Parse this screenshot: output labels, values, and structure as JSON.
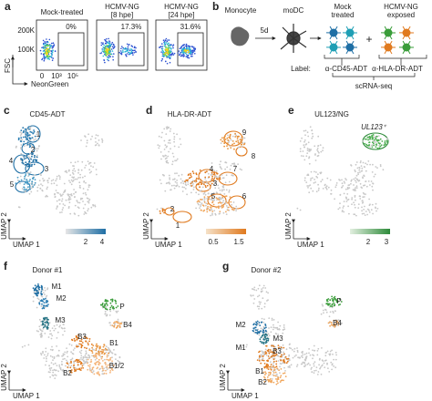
{
  "a": {
    "label": "a",
    "plots": [
      {
        "title": [
          "Mock-treated"
        ],
        "gate": "0%"
      },
      {
        "title": [
          "HCMV-NG",
          "[8 hpe]"
        ],
        "gate": "17.3%"
      },
      {
        "title": [
          "HCMV-NG",
          "[24 hpe]"
        ],
        "gate": "31.6%"
      }
    ],
    "y_label": "FSC",
    "y_ticks": [
      "200K",
      "100K"
    ],
    "x_ticks": [
      "0",
      "10³",
      "10⁵"
    ],
    "x_label": "NeonGreen"
  },
  "b": {
    "label": "b",
    "monocyte": "Monocyte",
    "duration": "5d",
    "modc": "moDC",
    "mock": [
      "Mock",
      "treated"
    ],
    "plus": "+",
    "exposed": [
      "HCMV-NG",
      "exposed"
    ],
    "label_prefix": "Label:",
    "cd45": "α-CD45-ADT",
    "hladr": "α-HLA-DR-ADT",
    "readout": "scRNA-seq"
  },
  "c": {
    "label": "c",
    "title": "CD45-ADT",
    "clusters": [
      "1",
      "2",
      "3",
      "4",
      "5"
    ],
    "colorbar_ticks": [
      "2",
      "4"
    ],
    "umap_y": "UMAP 2",
    "umap_x": "UMAP 1"
  },
  "d": {
    "label": "d",
    "title": "HLA-DR-ADT",
    "clusters": [
      "1",
      "2",
      "3",
      "4",
      "5",
      "6",
      "7",
      "8",
      "9"
    ],
    "colorbar_ticks": [
      "0.5",
      "1.5"
    ],
    "umap_y": "UMAP 2",
    "umap_x": "UMAP 1"
  },
  "e": {
    "label": "e",
    "title": "UL123/NG",
    "annotation": "UL123⁺",
    "colorbar_ticks": [
      "2",
      "3"
    ],
    "umap_y": "UMAP 2",
    "umap_x": "UMAP 1"
  },
  "f": {
    "label": "f",
    "title": "Donor #1",
    "clusters": [
      "M1",
      "M2",
      "M3",
      "P",
      "B4",
      "B3",
      "B1",
      "B2",
      "B1/2"
    ],
    "umap_y": "UMAP 2",
    "umap_x": "UMAP 1"
  },
  "g": {
    "label": "g",
    "title": "Donor #2",
    "clusters": [
      "P",
      "B4",
      "M2",
      "M1",
      "M3",
      "B3",
      "B1",
      "B2"
    ],
    "umap_y": "UMAP 2",
    "umap_x": "UMAP 1"
  }
}
